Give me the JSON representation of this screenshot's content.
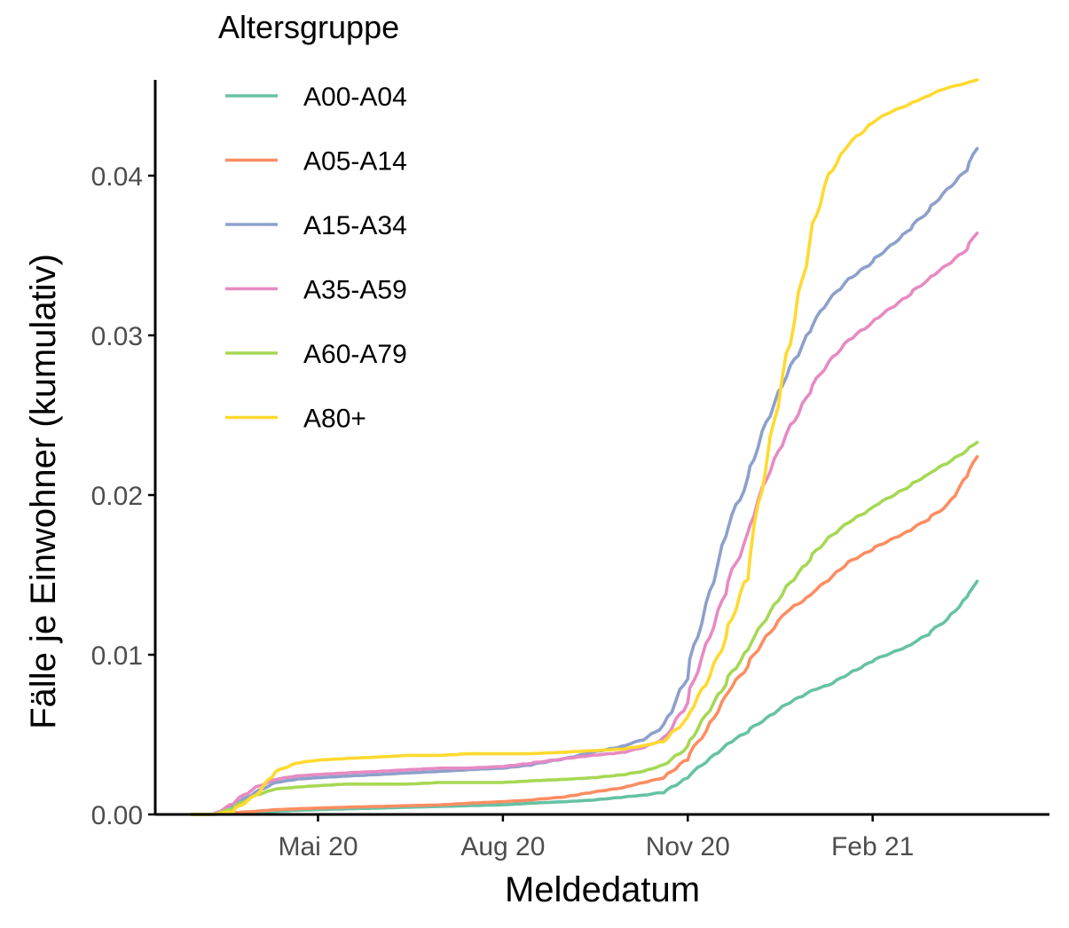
{
  "chart_data": {
    "type": "line",
    "title": "",
    "xlabel": "Meldedatum",
    "ylabel": "Fälle je Einwohner (kumulativ)",
    "legend_title": "Altersgruppe",
    "legend_position": "top-left",
    "grid": false,
    "x_ticks": [
      {
        "date": "2020-05-01",
        "label": "Mai 20"
      },
      {
        "date": "2020-08-01",
        "label": "Aug 20"
      },
      {
        "date": "2020-11-01",
        "label": "Nov 20"
      },
      {
        "date": "2021-02-01",
        "label": "Feb 21"
      }
    ],
    "y_ticks": [
      {
        "value": 0.0,
        "label": "0.00"
      },
      {
        "value": 0.01,
        "label": "0.01"
      },
      {
        "value": 0.02,
        "label": "0.02"
      },
      {
        "value": 0.03,
        "label": "0.03"
      },
      {
        "value": 0.04,
        "label": "0.04"
      }
    ],
    "xlim": [
      "2020-02-10",
      "2021-04-30"
    ],
    "ylim": [
      0,
      0.046
    ],
    "x": [
      "2020-02-28",
      "2020-03-10",
      "2020-03-20",
      "2020-03-31",
      "2020-04-10",
      "2020-04-20",
      "2020-05-01",
      "2020-05-15",
      "2020-06-01",
      "2020-06-15",
      "2020-07-01",
      "2020-07-15",
      "2020-08-01",
      "2020-08-15",
      "2020-09-01",
      "2020-09-15",
      "2020-10-01",
      "2020-10-10",
      "2020-10-20",
      "2020-11-01",
      "2020-11-10",
      "2020-11-20",
      "2020-12-01",
      "2020-12-10",
      "2020-12-20",
      "2021-01-01",
      "2021-01-10",
      "2021-01-20",
      "2021-02-01",
      "2021-02-10",
      "2021-02-20",
      "2021-03-01",
      "2021-03-10",
      "2021-03-20",
      "2021-03-25"
    ],
    "series": [
      {
        "name": "A00-A04",
        "color": "#66c2a5",
        "values": [
          0,
          0,
          5e-05,
          0.00015,
          0.0002,
          0.00025,
          0.0003,
          0.00035,
          0.0004,
          0.00045,
          0.0005,
          0.00055,
          0.0006,
          0.0007,
          0.0008,
          0.0009,
          0.0011,
          0.0012,
          0.0014,
          0.0023,
          0.0033,
          0.0043,
          0.0052,
          0.006,
          0.0069,
          0.0077,
          0.0081,
          0.0088,
          0.0096,
          0.0101,
          0.0106,
          0.0113,
          0.0122,
          0.0136,
          0.0146
        ]
      },
      {
        "name": "A05-A14",
        "color": "#fc8d62",
        "values": [
          0,
          0,
          0.0001,
          0.0002,
          0.0003,
          0.00035,
          0.0004,
          0.00045,
          0.0005,
          0.00055,
          0.0006,
          0.0007,
          0.0008,
          0.0009,
          0.0011,
          0.0014,
          0.0017,
          0.002,
          0.0023,
          0.0035,
          0.0052,
          0.0074,
          0.0093,
          0.0111,
          0.0127,
          0.0137,
          0.0147,
          0.0158,
          0.0166,
          0.0172,
          0.0178,
          0.0185,
          0.0193,
          0.0212,
          0.0224
        ]
      },
      {
        "name": "A15-A34",
        "color": "#8da0cb",
        "values": [
          0,
          0,
          0.0005,
          0.0014,
          0.002,
          0.0022,
          0.0023,
          0.0024,
          0.0025,
          0.0026,
          0.0027,
          0.0028,
          0.0029,
          0.0031,
          0.0035,
          0.0039,
          0.0043,
          0.0047,
          0.0055,
          0.0087,
          0.013,
          0.0175,
          0.021,
          0.0245,
          0.0275,
          0.0303,
          0.0322,
          0.0335,
          0.0346,
          0.0356,
          0.0367,
          0.0378,
          0.0391,
          0.0404,
          0.0417
        ]
      },
      {
        "name": "A35-A59",
        "color": "#e78ac3",
        "values": [
          0,
          0,
          0.0007,
          0.0017,
          0.0022,
          0.0024,
          0.0025,
          0.0026,
          0.0027,
          0.0028,
          0.0029,
          0.0029,
          0.003,
          0.0032,
          0.0035,
          0.0037,
          0.0039,
          0.0042,
          0.0047,
          0.007,
          0.0105,
          0.014,
          0.0175,
          0.021,
          0.0238,
          0.0265,
          0.0283,
          0.0297,
          0.0308,
          0.0317,
          0.0326,
          0.0335,
          0.0344,
          0.0354,
          0.0364
        ]
      },
      {
        "name": "A60-A79",
        "color": "#a6d854",
        "values": [
          0,
          0,
          0.0004,
          0.0012,
          0.0016,
          0.0017,
          0.0018,
          0.0019,
          0.0019,
          0.0019,
          0.002,
          0.002,
          0.002,
          0.0021,
          0.0022,
          0.0023,
          0.0025,
          0.0027,
          0.0031,
          0.0042,
          0.0062,
          0.0082,
          0.0103,
          0.0123,
          0.0142,
          0.016,
          0.0173,
          0.0183,
          0.0192,
          0.0199,
          0.0206,
          0.0213,
          0.022,
          0.0228,
          0.0233
        ]
      },
      {
        "name": "A80+",
        "color": "#ffd92f",
        "values": [
          0,
          0,
          0.0002,
          0.0012,
          0.0027,
          0.0032,
          0.0034,
          0.0035,
          0.0036,
          0.0037,
          0.0037,
          0.0038,
          0.0038,
          0.0038,
          0.0039,
          0.004,
          0.0041,
          0.0043,
          0.0046,
          0.006,
          0.0082,
          0.011,
          0.015,
          0.022,
          0.0285,
          0.036,
          0.04,
          0.042,
          0.0433,
          0.044,
          0.0445,
          0.045,
          0.0455,
          0.0458,
          0.046
        ]
      }
    ]
  }
}
